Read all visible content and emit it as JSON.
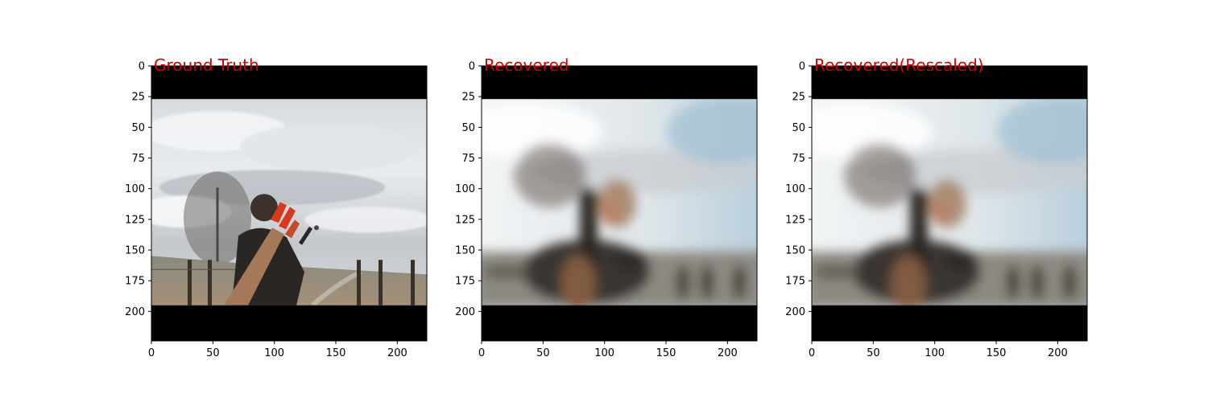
{
  "chart_data": [
    {
      "type": "image",
      "title": "Ground Truth",
      "title_color": "#d00000",
      "xlim": [
        0,
        224
      ],
      "ylim": [
        224,
        0
      ],
      "xticks": [
        0,
        50,
        100,
        150,
        200
      ],
      "yticks": [
        0,
        25,
        50,
        75,
        100,
        125,
        150,
        175,
        200
      ],
      "letterbox_rows": {
        "top": [
          0,
          27
        ],
        "bottom": [
          195,
          224
        ]
      },
      "content": "sharp outdoor photo: cloudy sky, bare tree at left, person with red-feathered arrows in quiver, fence and dirt road"
    },
    {
      "type": "image",
      "title": "Recovered",
      "title_color": "#d00000",
      "xlim": [
        0,
        224
      ],
      "ylim": [
        224,
        0
      ],
      "xticks": [
        0,
        50,
        100,
        150,
        200
      ],
      "yticks": [
        0,
        25,
        50,
        75,
        100,
        125,
        150,
        175,
        200
      ],
      "letterbox_rows": {
        "top": [
          0,
          27
        ],
        "bottom": [
          195,
          224
        ]
      },
      "content": "blurred reconstruction of the same scene"
    },
    {
      "type": "image",
      "title": "Recovered(Rescaled)",
      "title_color": "#d00000",
      "xlim": [
        0,
        224
      ],
      "ylim": [
        224,
        0
      ],
      "xticks": [
        0,
        50,
        100,
        150,
        200
      ],
      "yticks": [
        0,
        25,
        50,
        75,
        100,
        125,
        150,
        175,
        200
      ],
      "letterbox_rows": {
        "top": [
          0,
          27
        ],
        "bottom": [
          195,
          224
        ]
      },
      "content": "blurred reconstruction, rescaled"
    }
  ],
  "colors": {
    "letterbox": "#000000",
    "sky_light": "#eef1f3",
    "sky_mid": "#c9cfd5",
    "sky_blue": "#a9c3d3",
    "ground": "#9a8e7f",
    "figure_dark": "#2a2624",
    "quiver_brown": "#a5785a",
    "feather_red": "#d83a20"
  }
}
